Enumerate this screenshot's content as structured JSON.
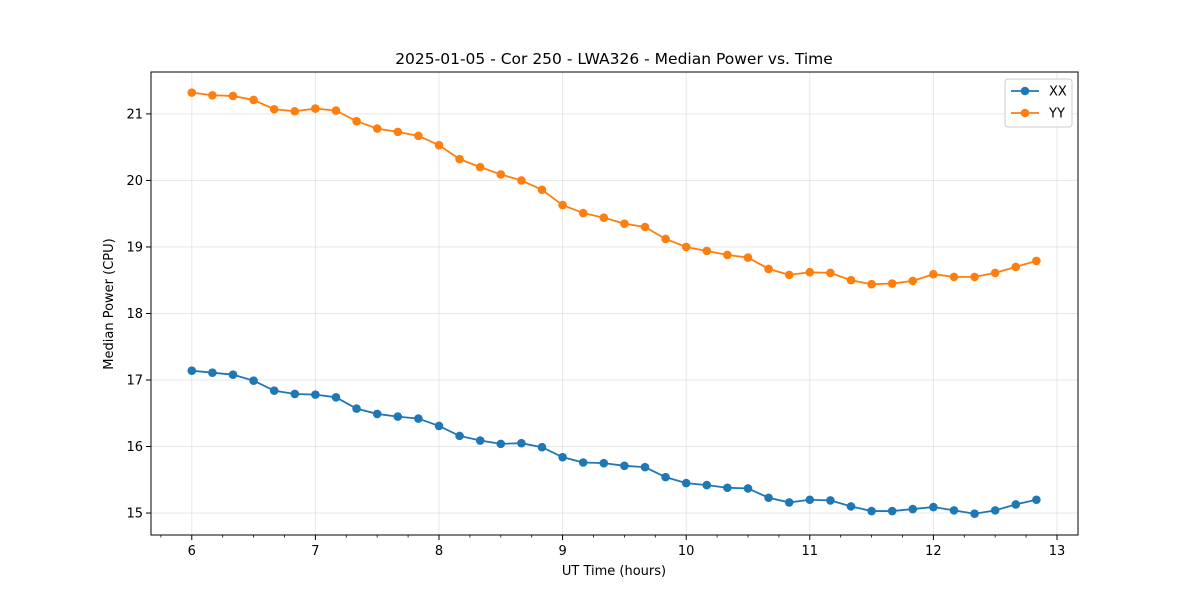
{
  "chart_data": {
    "type": "line",
    "title": "2025-01-05 - Cor 250 - LWA326 - Median Power vs. Time",
    "xlabel": "UT Time (hours)",
    "ylabel": "Median Power (CPU)",
    "xlim": [
      5.67,
      13.17
    ],
    "ylim": [
      14.67,
      21.63
    ],
    "xticks": [
      6,
      7,
      8,
      9,
      10,
      11,
      12,
      13
    ],
    "yticks": [
      15,
      16,
      17,
      18,
      19,
      20,
      21
    ],
    "grid": true,
    "legend_position": "top-right",
    "x": [
      6.0,
      6.1667,
      6.3333,
      6.5,
      6.6667,
      6.8333,
      7.0,
      7.1667,
      7.3333,
      7.5,
      7.6667,
      7.8333,
      8.0,
      8.1667,
      8.3333,
      8.5,
      8.6667,
      8.8333,
      9.0,
      9.1667,
      9.3333,
      9.5,
      9.6667,
      9.8333,
      10.0,
      10.1667,
      10.3333,
      10.5,
      10.6667,
      10.8333,
      11.0,
      11.1667,
      11.3333,
      11.5,
      11.6667,
      11.8333,
      12.0,
      12.1667,
      12.3333,
      12.5,
      12.6667,
      12.8333
    ],
    "series": [
      {
        "name": "XX",
        "color": "#1f77b4",
        "values": [
          17.14,
          17.11,
          17.08,
          16.99,
          16.84,
          16.79,
          16.78,
          16.74,
          16.57,
          16.49,
          16.45,
          16.42,
          16.31,
          16.16,
          16.09,
          16.04,
          16.05,
          15.99,
          15.84,
          15.76,
          15.75,
          15.71,
          15.69,
          15.54,
          15.45,
          15.42,
          15.38,
          15.37,
          15.23,
          15.16,
          15.2,
          15.19,
          15.1,
          15.03,
          15.03,
          15.06,
          15.09,
          15.04,
          14.99,
          15.04,
          15.13,
          15.2
        ]
      },
      {
        "name": "YY",
        "color": "#ff7f0e",
        "values": [
          21.32,
          21.28,
          21.27,
          21.21,
          21.07,
          21.04,
          21.08,
          21.05,
          20.89,
          20.78,
          20.73,
          20.67,
          20.53,
          20.32,
          20.2,
          20.09,
          20.0,
          19.86,
          19.63,
          19.51,
          19.44,
          19.35,
          19.3,
          19.12,
          19.0,
          18.94,
          18.88,
          18.84,
          18.67,
          18.58,
          18.62,
          18.61,
          18.5,
          18.44,
          18.45,
          18.49,
          18.59,
          18.55,
          18.55,
          18.61,
          18.7,
          18.79
        ]
      }
    ]
  }
}
